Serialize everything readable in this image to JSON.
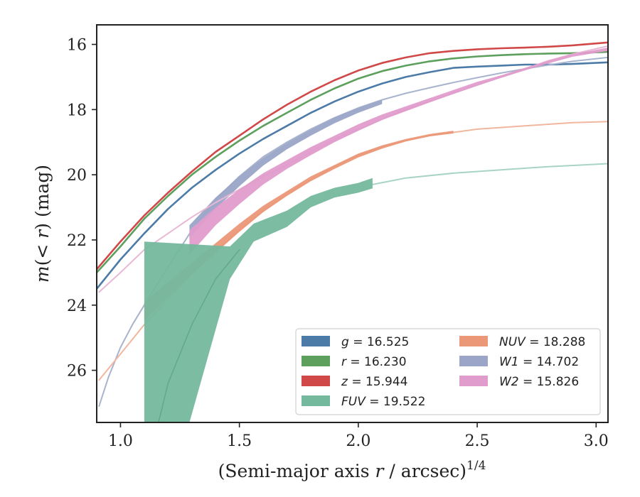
{
  "chart_data": {
    "type": "line",
    "xlabel": "(Semi-major axis r / arcsec)^1/4",
    "ylabel": "m(<r) (mag)",
    "xlim": [
      0.9,
      3.05
    ],
    "ylim": [
      27.6,
      15.4
    ],
    "y_inverted": true,
    "x_ticks": [
      "1.0",
      "1.5",
      "2.0",
      "2.5",
      "3.0"
    ],
    "y_ticks": [
      "16",
      "18",
      "20",
      "22",
      "24",
      "26"
    ],
    "grid": false,
    "legend_position": "lower-right",
    "legend": [
      {
        "name": "g",
        "value": "16.525"
      },
      {
        "name": "r",
        "value": "16.230"
      },
      {
        "name": "z",
        "value": "15.944"
      },
      {
        "name": "FUV",
        "value": "19.522"
      },
      {
        "name": "NUV",
        "value": "18.288"
      },
      {
        "name": "W1",
        "value": "14.702"
      },
      {
        "name": "W2",
        "value": "15.826"
      }
    ],
    "series": [
      {
        "id": "g",
        "color": "#4c7ba8",
        "kind": "line",
        "width": 2.6,
        "points": [
          [
            0.9,
            23.5
          ],
          [
            1.0,
            22.6
          ],
          [
            1.1,
            21.8
          ],
          [
            1.2,
            21.05
          ],
          [
            1.3,
            20.4
          ],
          [
            1.4,
            19.85
          ],
          [
            1.5,
            19.35
          ],
          [
            1.6,
            18.9
          ],
          [
            1.7,
            18.5
          ],
          [
            1.8,
            18.1
          ],
          [
            1.9,
            17.75
          ],
          [
            2.0,
            17.45
          ],
          [
            2.1,
            17.2
          ],
          [
            2.2,
            17.0
          ],
          [
            2.3,
            16.85
          ],
          [
            2.4,
            16.72
          ],
          [
            2.5,
            16.68
          ],
          [
            2.6,
            16.65
          ],
          [
            2.7,
            16.62
          ],
          [
            2.8,
            16.62
          ],
          [
            2.9,
            16.6
          ],
          [
            3.05,
            16.55
          ]
        ]
      },
      {
        "id": "r",
        "color": "#5da05d",
        "kind": "line",
        "width": 2.6,
        "points": [
          [
            0.9,
            23.0
          ],
          [
            1.0,
            22.2
          ],
          [
            1.1,
            21.35
          ],
          [
            1.2,
            20.65
          ],
          [
            1.3,
            20.0
          ],
          [
            1.4,
            19.45
          ],
          [
            1.5,
            18.95
          ],
          [
            1.6,
            18.5
          ],
          [
            1.7,
            18.1
          ],
          [
            1.8,
            17.7
          ],
          [
            1.9,
            17.35
          ],
          [
            2.0,
            17.05
          ],
          [
            2.1,
            16.82
          ],
          [
            2.2,
            16.65
          ],
          [
            2.3,
            16.52
          ],
          [
            2.4,
            16.43
          ],
          [
            2.5,
            16.37
          ],
          [
            2.6,
            16.33
          ],
          [
            2.7,
            16.3
          ],
          [
            2.8,
            16.28
          ],
          [
            2.9,
            16.27
          ],
          [
            3.05,
            16.23
          ]
        ]
      },
      {
        "id": "z",
        "color": "#d04848",
        "kind": "line",
        "width": 2.6,
        "points": [
          [
            0.9,
            22.9
          ],
          [
            1.0,
            22.05
          ],
          [
            1.1,
            21.25
          ],
          [
            1.2,
            20.55
          ],
          [
            1.3,
            19.9
          ],
          [
            1.4,
            19.3
          ],
          [
            1.5,
            18.8
          ],
          [
            1.6,
            18.3
          ],
          [
            1.7,
            17.85
          ],
          [
            1.8,
            17.45
          ],
          [
            1.9,
            17.1
          ],
          [
            2.0,
            16.8
          ],
          [
            2.1,
            16.57
          ],
          [
            2.2,
            16.4
          ],
          [
            2.3,
            16.27
          ],
          [
            2.4,
            16.2
          ],
          [
            2.5,
            16.15
          ],
          [
            2.6,
            16.12
          ],
          [
            2.7,
            16.1
          ],
          [
            2.8,
            16.07
          ],
          [
            2.9,
            16.03
          ],
          [
            3.05,
            15.94
          ]
        ]
      },
      {
        "id": "W1-faint",
        "color": "#a8b4cd",
        "kind": "line",
        "width": 2,
        "points": [
          [
            0.91,
            27.1
          ],
          [
            0.95,
            26.2
          ],
          [
            1.0,
            25.3
          ],
          [
            1.05,
            24.6
          ],
          [
            1.15,
            23.4
          ],
          [
            1.3,
            21.7
          ],
          [
            1.4,
            20.75
          ],
          [
            1.5,
            20.05
          ],
          [
            1.6,
            19.45
          ],
          [
            1.7,
            19.0
          ],
          [
            1.8,
            18.6
          ],
          [
            1.9,
            18.25
          ],
          [
            2.0,
            17.95
          ],
          [
            2.1,
            17.7
          ],
          [
            2.2,
            17.5
          ],
          [
            2.3,
            17.33
          ],
          [
            2.4,
            17.17
          ],
          [
            2.5,
            17.02
          ],
          [
            2.6,
            16.88
          ],
          [
            2.7,
            16.75
          ],
          [
            2.8,
            16.63
          ],
          [
            2.9,
            16.52
          ],
          [
            3.05,
            16.4
          ]
        ]
      },
      {
        "id": "W1-band",
        "color": "#9aa5c8",
        "kind": "band",
        "upper": [
          [
            1.29,
            21.55
          ],
          [
            1.4,
            20.7
          ],
          [
            1.5,
            20.05
          ],
          [
            1.6,
            19.48
          ],
          [
            1.7,
            19.02
          ],
          [
            1.8,
            18.62
          ],
          [
            1.9,
            18.25
          ],
          [
            2.0,
            17.95
          ],
          [
            2.1,
            17.7
          ]
        ],
        "lower": [
          [
            1.29,
            21.95
          ],
          [
            1.4,
            21.05
          ],
          [
            1.5,
            20.35
          ],
          [
            1.6,
            19.72
          ],
          [
            1.7,
            19.22
          ],
          [
            1.8,
            18.8
          ],
          [
            1.9,
            18.42
          ],
          [
            2.0,
            18.1
          ],
          [
            2.1,
            17.83
          ]
        ]
      },
      {
        "id": "W2-faint",
        "color": "#e8b8d4",
        "kind": "line",
        "width": 2,
        "points": [
          [
            0.91,
            23.6
          ],
          [
            1.0,
            23.0
          ],
          [
            1.1,
            22.3
          ],
          [
            1.2,
            21.8
          ],
          [
            1.3,
            21.3
          ],
          [
            1.4,
            20.85
          ],
          [
            1.5,
            20.45
          ],
          [
            1.6,
            20.05
          ],
          [
            1.7,
            19.7
          ],
          [
            1.8,
            19.3
          ],
          [
            1.9,
            18.92
          ],
          [
            2.0,
            18.6
          ],
          [
            2.1,
            18.3
          ],
          [
            2.2,
            18.0
          ],
          [
            2.3,
            17.75
          ],
          [
            2.4,
            17.5
          ],
          [
            2.5,
            17.25
          ],
          [
            2.6,
            17.0
          ],
          [
            2.7,
            16.75
          ],
          [
            2.8,
            16.5
          ],
          [
            2.9,
            16.3
          ],
          [
            3.05,
            16.05
          ]
        ]
      },
      {
        "id": "W2-band",
        "color": "#e09ccc",
        "kind": "band",
        "upper": [
          [
            1.29,
            21.7
          ],
          [
            1.4,
            21.0
          ],
          [
            1.5,
            20.45
          ],
          [
            1.6,
            19.95
          ],
          [
            1.7,
            19.55
          ],
          [
            1.8,
            19.15
          ],
          [
            1.9,
            18.8
          ],
          [
            2.0,
            18.45
          ],
          [
            2.1,
            18.15
          ],
          [
            2.2,
            17.9
          ],
          [
            2.3,
            17.65
          ],
          [
            2.4,
            17.4
          ],
          [
            2.5,
            17.15
          ],
          [
            2.6,
            16.95
          ],
          [
            2.7,
            16.72
          ],
          [
            2.8,
            16.5
          ],
          [
            2.9,
            16.3
          ],
          [
            3.05,
            16.1
          ]
        ],
        "lower": [
          [
            1.29,
            22.45
          ],
          [
            1.4,
            21.55
          ],
          [
            1.5,
            20.9
          ],
          [
            1.6,
            20.3
          ],
          [
            1.7,
            19.82
          ],
          [
            1.8,
            19.4
          ],
          [
            1.9,
            19.0
          ],
          [
            2.0,
            18.65
          ],
          [
            2.1,
            18.32
          ],
          [
            2.2,
            18.05
          ],
          [
            2.3,
            17.78
          ],
          [
            2.4,
            17.52
          ],
          [
            2.5,
            17.27
          ],
          [
            2.6,
            17.03
          ],
          [
            2.7,
            16.8
          ],
          [
            2.8,
            16.58
          ],
          [
            2.9,
            16.38
          ],
          [
            3.05,
            16.2
          ]
        ]
      },
      {
        "id": "NUV-faint",
        "color": "#f1b69e",
        "kind": "line",
        "width": 2,
        "points": [
          [
            0.91,
            26.3
          ],
          [
            1.0,
            25.5
          ],
          [
            1.1,
            24.6
          ],
          [
            1.2,
            23.8
          ],
          [
            1.3,
            23.05
          ],
          [
            1.4,
            22.35
          ],
          [
            1.5,
            21.7
          ],
          [
            1.6,
            21.1
          ],
          [
            1.7,
            20.6
          ],
          [
            1.8,
            20.15
          ],
          [
            1.9,
            19.75
          ],
          [
            2.0,
            19.4
          ],
          [
            2.1,
            19.15
          ],
          [
            2.2,
            18.95
          ],
          [
            2.3,
            18.8
          ],
          [
            2.4,
            18.7
          ],
          [
            2.5,
            18.6
          ],
          [
            2.6,
            18.55
          ],
          [
            2.7,
            18.5
          ],
          [
            2.8,
            18.45
          ],
          [
            2.9,
            18.4
          ],
          [
            3.05,
            18.37
          ]
        ]
      },
      {
        "id": "NUV-band",
        "color": "#eb9878",
        "kind": "band",
        "upper": [
          [
            1.1,
            23.9
          ],
          [
            1.2,
            23.3
          ],
          [
            1.3,
            22.7
          ],
          [
            1.4,
            22.1
          ],
          [
            1.5,
            21.5
          ],
          [
            1.6,
            20.95
          ],
          [
            1.7,
            20.5
          ],
          [
            1.8,
            20.05
          ],
          [
            1.9,
            19.7
          ],
          [
            2.0,
            19.35
          ],
          [
            2.1,
            19.1
          ],
          [
            2.2,
            18.9
          ],
          [
            2.3,
            18.75
          ],
          [
            2.4,
            18.65
          ]
        ],
        "lower": [
          [
            1.1,
            24.5
          ],
          [
            1.2,
            23.75
          ],
          [
            1.3,
            23.05
          ],
          [
            1.4,
            22.4
          ],
          [
            1.5,
            21.75
          ],
          [
            1.6,
            21.15
          ],
          [
            1.7,
            20.65
          ],
          [
            1.8,
            20.2
          ],
          [
            1.9,
            19.82
          ],
          [
            2.0,
            19.47
          ],
          [
            2.1,
            19.2
          ],
          [
            2.2,
            18.98
          ],
          [
            2.3,
            18.82
          ],
          [
            2.4,
            18.73
          ]
        ]
      },
      {
        "id": "FUV-faint",
        "color": "#a8d4c4",
        "kind": "line",
        "width": 2,
        "points": [
          [
            2.06,
            20.3
          ],
          [
            2.2,
            20.1
          ],
          [
            2.4,
            19.95
          ],
          [
            2.6,
            19.85
          ],
          [
            2.8,
            19.75
          ],
          [
            3.05,
            19.66
          ]
        ]
      },
      {
        "id": "FUV-band",
        "color": "#74b89e",
        "kind": "band",
        "upper": [
          [
            1.1,
            22.05
          ],
          [
            1.46,
            22.2
          ],
          [
            1.56,
            21.5
          ],
          [
            1.7,
            21.1
          ],
          [
            1.8,
            20.65
          ],
          [
            1.9,
            20.4
          ],
          [
            2.0,
            20.25
          ],
          [
            2.06,
            20.1
          ]
        ],
        "lower": [
          [
            1.1,
            27.6
          ],
          [
            1.29,
            27.6
          ],
          [
            1.46,
            23.2
          ],
          [
            1.56,
            22.05
          ],
          [
            1.7,
            21.6
          ],
          [
            1.8,
            21.0
          ],
          [
            1.9,
            20.7
          ],
          [
            2.0,
            20.55
          ],
          [
            2.06,
            20.42
          ]
        ]
      },
      {
        "id": "FUV-center",
        "color": "#62a88c",
        "kind": "line",
        "width": 1.5,
        "points": [
          [
            1.16,
            27.6
          ],
          [
            1.2,
            26.4
          ],
          [
            1.3,
            24.6
          ],
          [
            1.4,
            23.2
          ],
          [
            1.5,
            22.3
          ]
        ]
      }
    ],
    "legend_colors": {
      "g": "#4c7ba8",
      "r": "#5da05d",
      "z": "#d04848",
      "FUV": "#74b89e",
      "NUV": "#eb9878",
      "W1": "#9aa5c8",
      "W2": "#e09ccc"
    }
  }
}
